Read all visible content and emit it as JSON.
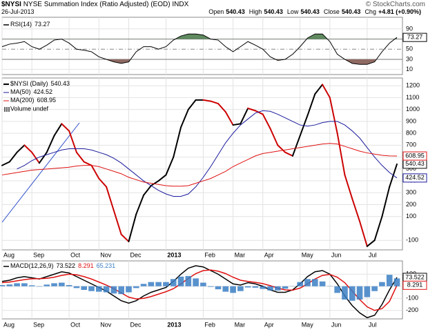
{
  "header": {
    "symbol": "$NYSI",
    "name": "NYSE Summation Index (Ratio Adjusted) (EOD)",
    "exchange": "INDX",
    "source": "© StockCharts.com",
    "date": "26-Jul-2013",
    "quote": [
      {
        "label": "Open",
        "value": 540.43
      },
      {
        "label": "High",
        "value": 540.43
      },
      {
        "label": "Low",
        "value": 540.43
      },
      {
        "label": "Close",
        "value": 540.43
      },
      {
        "label": "Chg",
        "value": "+4.81 (+0.90%)"
      }
    ]
  },
  "chart_data": [
    {
      "type": "line",
      "label": "RSI(14)",
      "ylim": [
        0,
        113
      ],
      "yticks": [
        90,
        70,
        50,
        30,
        10
      ],
      "bands": [
        30,
        70
      ],
      "band_colors": [
        "#8f6a63",
        "#5f8a5f"
      ],
      "series": [
        {
          "color": "#000000",
          "values": [
            55,
            60,
            62,
            65,
            55,
            50,
            58,
            68,
            70,
            62,
            50,
            48,
            45,
            35,
            30,
            25,
            22,
            25,
            45,
            55,
            55,
            50,
            55,
            68,
            76,
            80,
            80,
            78,
            70,
            68,
            55,
            45,
            55,
            65,
            58,
            50,
            35,
            28,
            30,
            40,
            55,
            72,
            80,
            80,
            65,
            40,
            30,
            22,
            20,
            20,
            25,
            45,
            62,
            73.27
          ]
        }
      ]
    },
    {
      "type": "line",
      "ylim": [
        -180,
        1265
      ],
      "yticks": [
        1200,
        1100,
        1000,
        900,
        800,
        700,
        600,
        500,
        400,
        300,
        200,
        100,
        -100
      ],
      "legend_extra": "Volume undef",
      "categories": [
        "Aug",
        null,
        null,
        null,
        "Sep",
        null,
        null,
        null,
        null,
        "Oct",
        null,
        null,
        null,
        "Nov",
        null,
        null,
        null,
        "Dec",
        null,
        null,
        null,
        null,
        "2013",
        null,
        null,
        null,
        null,
        "Feb",
        null,
        null,
        null,
        "Mar",
        null,
        null,
        null,
        "Apr",
        null,
        null,
        null,
        null,
        "May",
        null,
        null,
        null,
        "Jun",
        null,
        null,
        null,
        null,
        "Jul",
        null,
        null,
        null,
        null
      ],
      "series": [
        {
          "name": "$NYSI (Daily)",
          "style": "updown",
          "color": "#000000",
          "down_color": "#cc0000",
          "values": [
            530,
            560,
            640,
            700,
            640,
            550,
            640,
            780,
            880,
            820,
            640,
            560,
            530,
            420,
            350,
            150,
            -50,
            -110,
            120,
            280,
            360,
            400,
            450,
            600,
            850,
            1000,
            1080,
            1080,
            1070,
            1050,
            980,
            870,
            880,
            1010,
            990,
            960,
            840,
            700,
            640,
            610,
            780,
            950,
            1130,
            1210,
            1100,
            800,
            450,
            250,
            60,
            -150,
            -100,
            100,
            350,
            540.43
          ]
        },
        {
          "name": "MA(50)",
          "color": "#1a1a9c",
          "values": [
            null,
            null,
            500,
            530,
            570,
            600,
            620,
            640,
            660,
            670,
            670,
            670,
            660,
            640,
            620,
            590,
            550,
            500,
            450,
            400,
            360,
            320,
            290,
            270,
            270,
            290,
            350,
            430,
            520,
            620,
            720,
            800,
            870,
            920,
            970,
            990,
            985,
            960,
            930,
            900,
            870,
            860,
            870,
            890,
            900,
            900,
            870,
            820,
            760,
            680,
            600,
            530,
            470,
            424.52
          ]
        },
        {
          "name": "MA(200)",
          "color": "#e01010",
          "values": [
            450,
            460,
            470,
            480,
            490,
            495,
            500,
            505,
            510,
            515,
            525,
            530,
            530,
            520,
            500,
            480,
            460,
            430,
            410,
            390,
            380,
            370,
            360,
            355,
            355,
            360,
            380,
            400,
            420,
            450,
            480,
            520,
            550,
            580,
            610,
            630,
            640,
            650,
            660,
            670,
            680,
            690,
            700,
            710,
            715,
            710,
            690,
            670,
            650,
            635,
            625,
            615,
            610,
            608.95
          ]
        }
      ]
    },
    {
      "type": "line",
      "label": "MACD(12,26,9)",
      "ylim": [
        -270,
        210
      ],
      "yticks": [
        100,
        0,
        -100,
        -200
      ],
      "categories": [
        "Aug",
        null,
        null,
        null,
        "Sep",
        null,
        null,
        null,
        null,
        "Oct",
        null,
        null,
        null,
        "Nov",
        null,
        null,
        null,
        "Dec",
        null,
        null,
        null,
        null,
        "2013",
        null,
        null,
        null,
        null,
        "Feb",
        null,
        null,
        null,
        "Mar",
        null,
        null,
        null,
        "Apr",
        null,
        null,
        null,
        null,
        "May",
        null,
        null,
        null,
        "Jun",
        null,
        null,
        null,
        null,
        "Jul",
        null,
        null,
        null,
        null
      ],
      "series": [
        {
          "color": "#000000",
          "values": [
            40,
            50,
            70,
            80,
            70,
            60,
            80,
            100,
            120,
            110,
            80,
            50,
            20,
            -10,
            -40,
            -80,
            -120,
            -140,
            -120,
            -80,
            -50,
            -30,
            -10,
            40,
            100,
            150,
            170,
            160,
            130,
            100,
            60,
            20,
            10,
            30,
            20,
            0,
            -30,
            -50,
            -50,
            -30,
            20,
            80,
            120,
            130,
            100,
            20,
            -80,
            -160,
            -220,
            -260,
            -240,
            -150,
            -30,
            73.522
          ]
        },
        {
          "color": "#e01010",
          "values": [
            30,
            35,
            45,
            55,
            62,
            63,
            66,
            75,
            90,
            100,
            95,
            80,
            60,
            35,
            10,
            -20,
            -55,
            -90,
            -105,
            -100,
            -85,
            -65,
            -45,
            -20,
            20,
            65,
            105,
            130,
            135,
            125,
            105,
            75,
            50,
            40,
            32,
            22,
            5,
            -15,
            -30,
            -32,
            -15,
            20,
            60,
            90,
            98,
            75,
            30,
            -40,
            -110,
            -170,
            -200,
            -185,
            -125,
            8.291
          ]
        },
        {
          "style": "histogram",
          "color": "#3b7fc4",
          "values": [
            10,
            15,
            25,
            25,
            8,
            -3,
            14,
            25,
            30,
            10,
            -15,
            -30,
            -40,
            -45,
            -50,
            -60,
            -65,
            -50,
            -15,
            20,
            35,
            35,
            35,
            60,
            80,
            85,
            65,
            30,
            -5,
            -25,
            -45,
            -55,
            -40,
            -10,
            -12,
            -22,
            -35,
            -35,
            -20,
            2,
            35,
            60,
            60,
            40,
            2,
            -55,
            -110,
            -120,
            -110,
            -90,
            -40,
            35,
            95,
            65.231
          ]
        }
      ]
    }
  ]
}
